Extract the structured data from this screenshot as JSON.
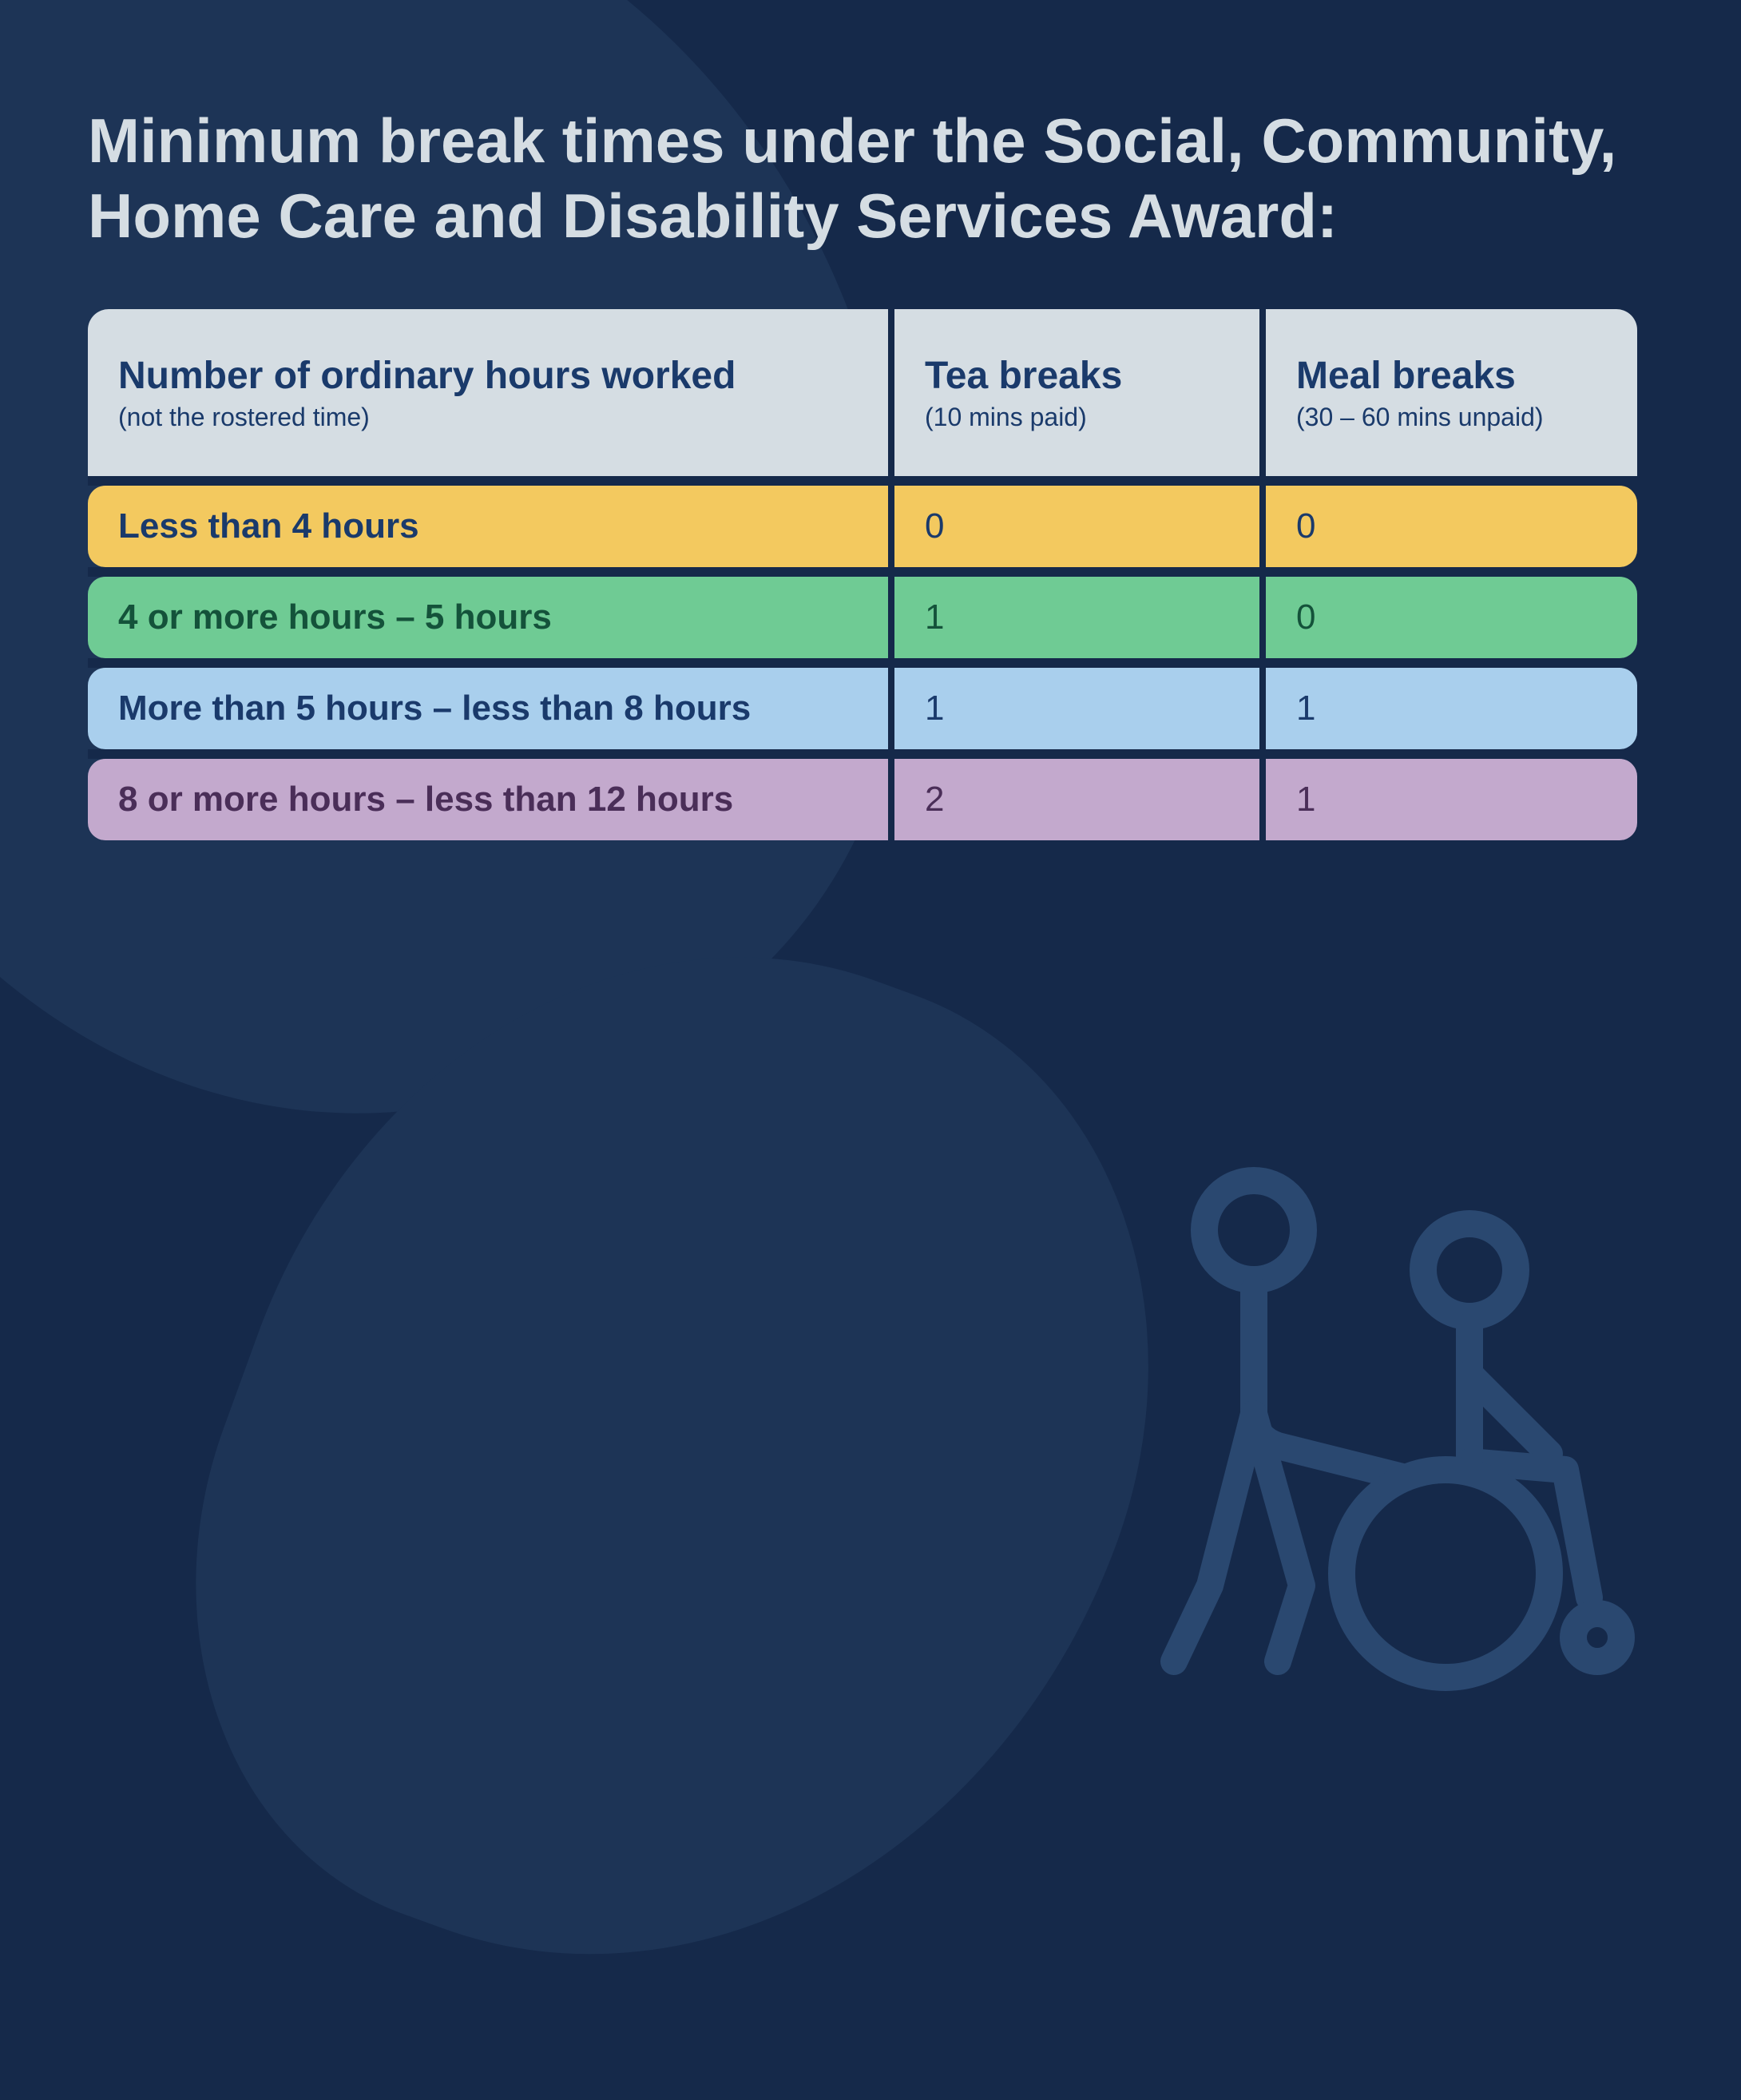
{
  "title": "Minimum break times under the Social, Community, Home Care and Disability Services Award:",
  "table": {
    "columns": [
      {
        "label": "Number of ordinary hours worked",
        "sublabel": "(not the rostered time)"
      },
      {
        "label": "Tea breaks",
        "sublabel": "(10 mins paid)"
      },
      {
        "label": "Meal breaks",
        "sublabel": "(30 – 60 mins unpaid)"
      }
    ],
    "rows": [
      {
        "hours": "Less than 4 hours",
        "tea": "0",
        "meal": "0",
        "bg": "#f3c95f",
        "text": "#1a3a6b"
      },
      {
        "hours": "4 or more hours – 5 hours",
        "tea": "1",
        "meal": "0",
        "bg": "#6fcb94",
        "text": "#14523a"
      },
      {
        "hours": "More than 5 hours – less than 8 hours",
        "tea": "1",
        "meal": "1",
        "bg": "#a9cfed",
        "text": "#1a3a6b"
      },
      {
        "hours": "8 or more hours – less than 12 hours",
        "tea": "2",
        "meal": "1",
        "bg": "#c3a9cd",
        "text": "#4a2e58"
      }
    ],
    "header_bg": "#d5dde3",
    "header_text": "#1a3a6b",
    "border_color": "#15294a",
    "corner_radius": 22
  },
  "colors": {
    "background": "#15294a",
    "background_shape": "#1d3456",
    "title_text": "#d5dde3",
    "icon_stroke": "#2a4870"
  },
  "typography": {
    "title_fontsize": 78,
    "header_main_fontsize": 48,
    "header_sub_fontsize": 32,
    "row_fontsize": 44
  }
}
